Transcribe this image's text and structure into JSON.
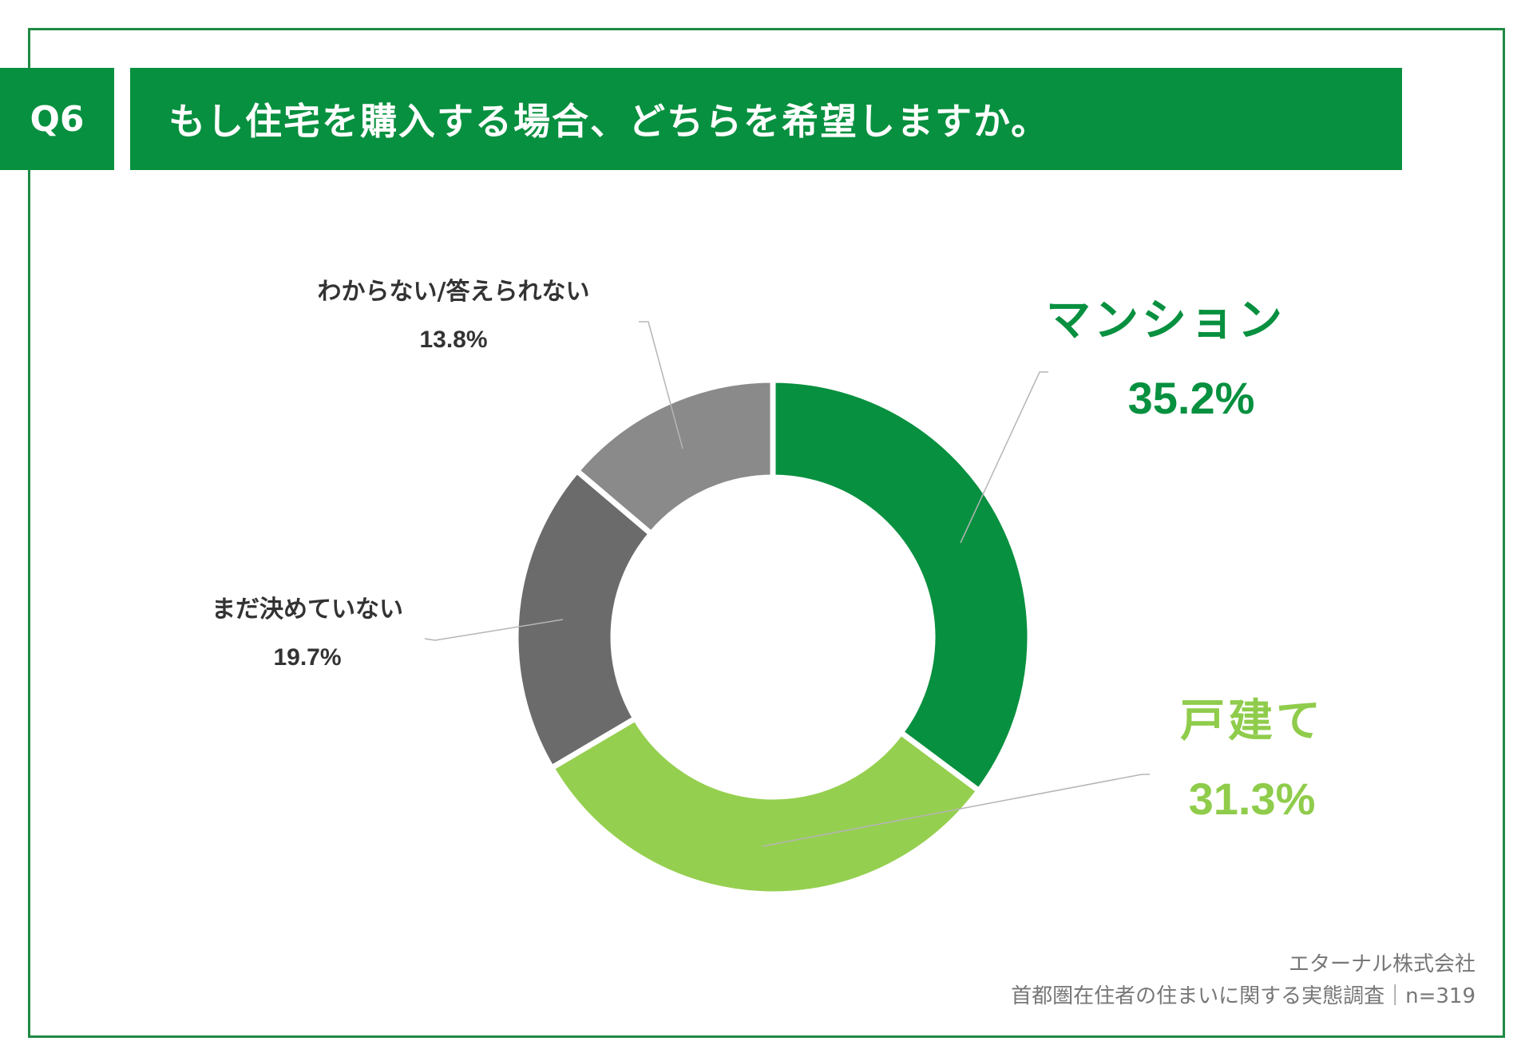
{
  "question": {
    "number": "Q6",
    "text": "もし住宅を購入する場合、どちらを希望しますか。"
  },
  "chart_data": {
    "type": "pie",
    "style": "donut",
    "categories": [
      "マンション",
      "戸建て",
      "まだ決めていない",
      "わからない/答えられない"
    ],
    "values": [
      35.2,
      31.3,
      19.7,
      13.8
    ],
    "value_labels": [
      "35.2%",
      "31.3%",
      "19.7%",
      "13.8%"
    ],
    "colors": [
      "#07903f",
      "#95cf4f",
      "#6b6b6b",
      "#8a8a8a"
    ],
    "label_colors": [
      "#07903f",
      "#8fcc4b",
      "#333333",
      "#333333"
    ],
    "start": "top",
    "direction": "clockwise"
  },
  "footer": {
    "company": "エターナル株式会社",
    "survey": "首都圏在住者の住まいに関する実態調査｜n=319"
  }
}
